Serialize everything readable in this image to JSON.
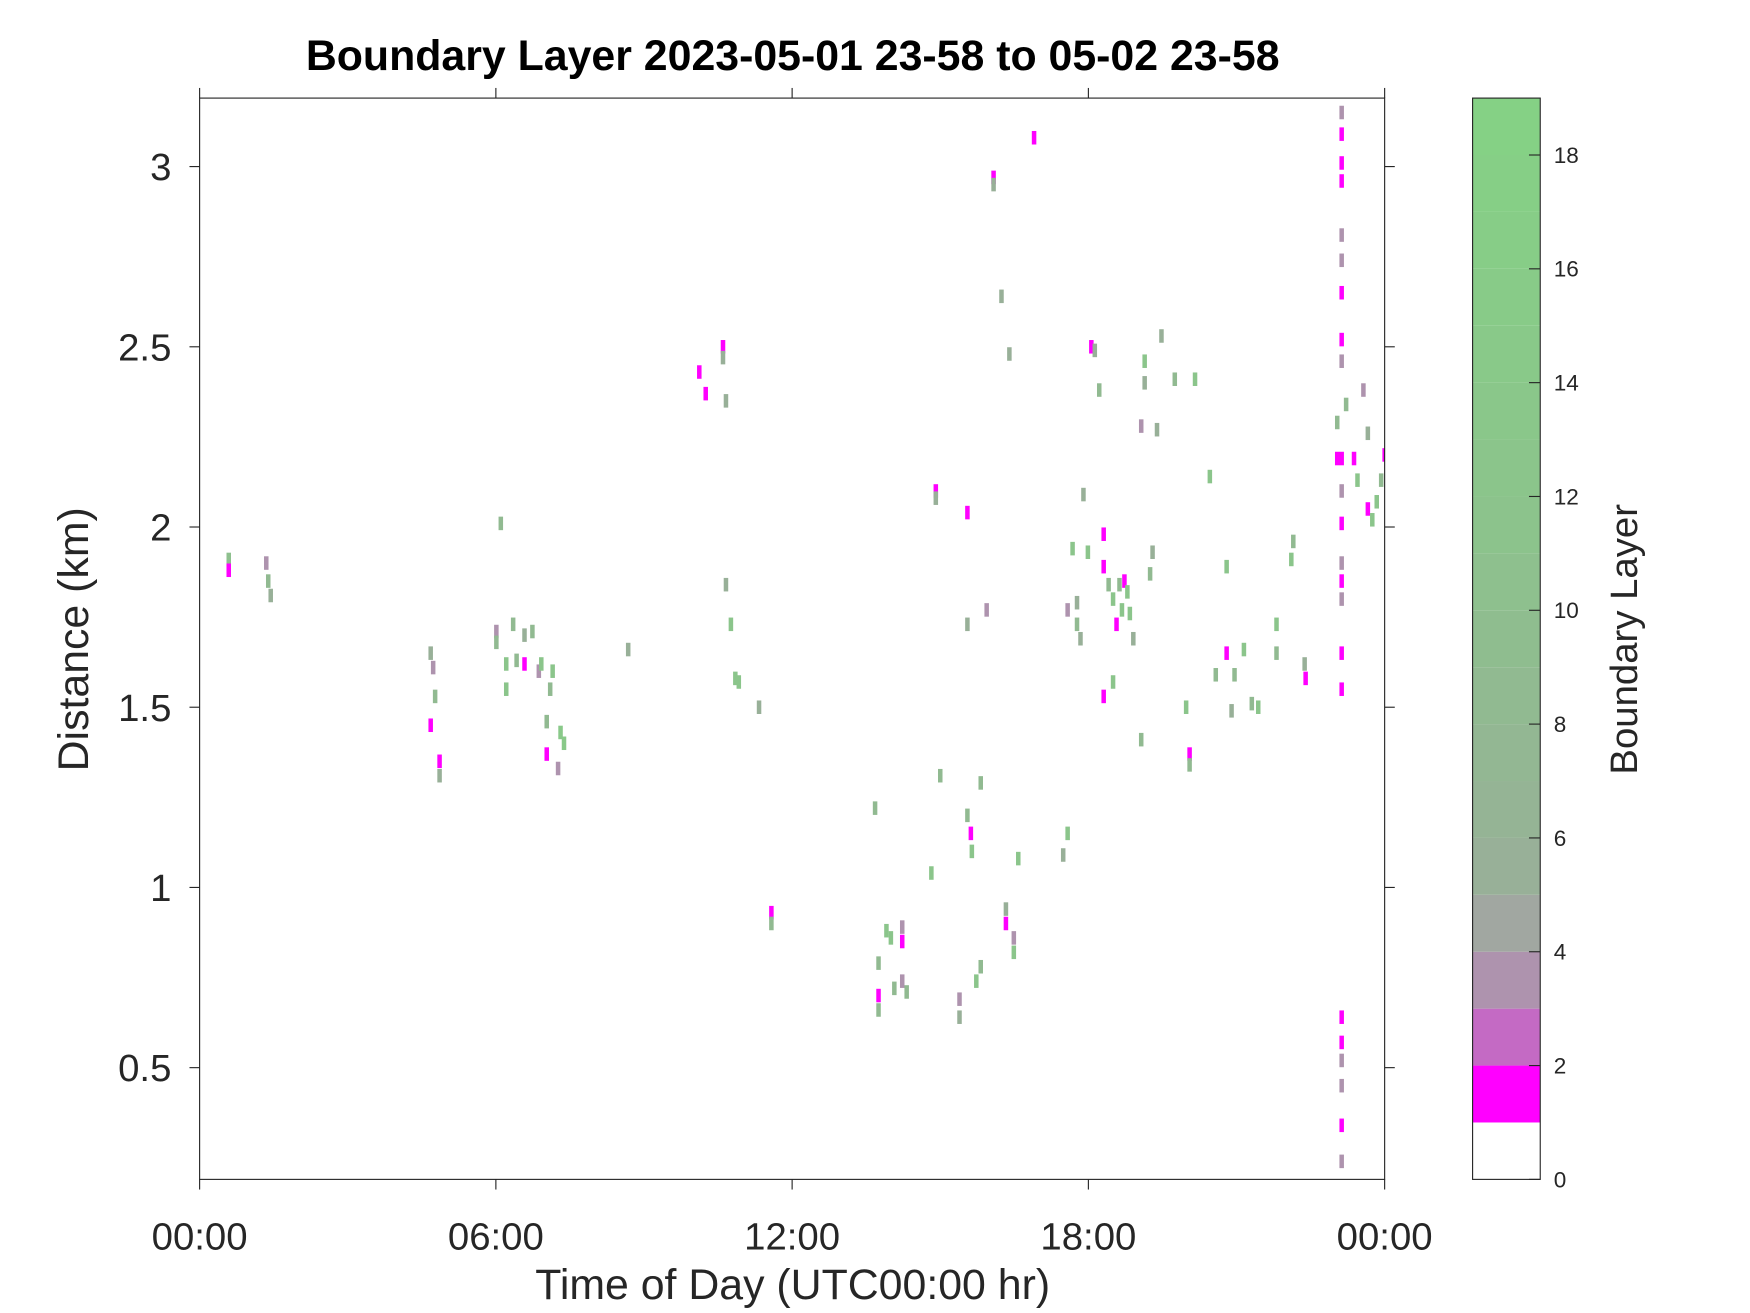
{
  "chart_data": {
    "type": "heatmap",
    "title": "Boundary Layer 2023-05-01 23-58 to 05-02 23-58",
    "xlabel": "Time of Day (UTC00:00 hr)",
    "ylabel": "Distance (km)",
    "colorbar_label": "Boundary Layer",
    "xlim": [
      0,
      24
    ],
    "xticks": [
      {
        "value": 0,
        "label": "00:00"
      },
      {
        "value": 6,
        "label": "06:00"
      },
      {
        "value": 12,
        "label": "12:00"
      },
      {
        "value": 18,
        "label": "18:00"
      },
      {
        "value": 24,
        "label": "00:00"
      }
    ],
    "ylim": [
      0.19,
      3.19
    ],
    "yticks": [
      0.5,
      1,
      1.5,
      2,
      2.5,
      3
    ],
    "clim": [
      0,
      19
    ],
    "cticks": [
      0,
      2,
      4,
      6,
      8,
      10,
      12,
      14,
      16,
      18
    ],
    "colormap": [
      "#ffffff",
      "#ff00ff",
      "#c46ac4",
      "#ae93ae",
      "#a1a7a1",
      "#98b098",
      "#95b495",
      "#93b793",
      "#91ba91",
      "#8fbd8f",
      "#8ec08e",
      "#8cc38c",
      "#8bc58b",
      "#8ac78a",
      "#89c989",
      "#88cb88",
      "#87cd87",
      "#86cf86",
      "#85d185"
    ],
    "x": [
      0.59,
      0.59,
      1.35,
      1.39,
      1.44,
      4.68,
      4.73,
      4.77,
      4.68,
      4.86,
      4.86,
      6.1,
      6.01,
      6.01,
      6.21,
      6.21,
      6.35,
      6.42,
      6.58,
      6.58,
      6.74,
      6.87,
      6.92,
      7.03,
      7.15,
      7.1,
      7.03,
      7.26,
      7.38,
      7.31,
      8.68,
      10.12,
      10.25,
      10.6,
      10.6,
      10.66,
      10.66,
      10.76,
      10.85,
      10.92,
      11.33,
      11.58,
      11.58,
      13.68,
      13.75,
      13.75,
      13.75,
      13.91,
      14.0,
      14.23,
      14.23,
      14.07,
      14.23,
      14.32,
      14.82,
      14.91,
      14.91,
      15.0,
      15.39,
      15.39,
      15.55,
      15.55,
      15.55,
      15.62,
      15.64,
      15.73,
      15.82,
      15.82,
      15.94,
      16.08,
      16.08,
      16.24,
      16.33,
      16.33,
      16.4,
      16.49,
      16.49,
      16.58,
      16.9,
      17.49,
      17.58,
      17.58,
      17.77,
      17.77,
      17.84,
      17.9,
      17.68,
      17.99,
      18.06,
      18.13,
      18.22,
      18.31,
      18.31,
      18.31,
      18.41,
      18.5,
      18.5,
      18.57,
      18.63,
      18.68,
      18.73,
      18.79,
      18.84,
      18.91,
      19.07,
      19.14,
      19.14,
      19.07,
      19.25,
      19.3,
      19.39,
      19.48,
      19.75,
      19.98,
      20.05,
      20.05,
      20.16,
      20.46,
      20.58,
      20.8,
      20.8,
      20.9,
      20.96,
      21.15,
      21.31,
      21.44,
      21.81,
      21.81,
      22.11,
      22.15,
      22.38,
      22.4,
      23.04,
      23.04,
      23.13,
      23.13,
      23.13,
      23.13,
      23.13,
      23.13,
      23.13,
      23.13,
      23.13,
      23.13,
      23.13,
      23.13,
      23.13,
      23.13,
      23.13,
      23.13,
      23.13,
      23.13,
      23.13,
      23.13,
      23.13,
      23.13,
      23.13,
      23.22,
      23.38,
      23.45,
      23.57,
      23.66,
      23.66,
      23.75,
      23.84,
      23.93,
      24.0
    ],
    "y": [
      1.91,
      1.88,
      1.9,
      1.85,
      1.81,
      1.65,
      1.61,
      1.53,
      1.45,
      1.35,
      1.31,
      2.01,
      1.71,
      1.68,
      1.62,
      1.55,
      1.73,
      1.63,
      1.7,
      1.62,
      1.71,
      1.6,
      1.62,
      1.46,
      1.6,
      1.55,
      1.37,
      1.33,
      1.4,
      1.43,
      1.66,
      2.43,
      2.37,
      2.5,
      2.47,
      2.35,
      1.84,
      1.73,
      1.58,
      1.57,
      1.5,
      0.93,
      0.9,
      1.22,
      0.79,
      0.7,
      0.66,
      0.88,
      0.86,
      0.89,
      0.85,
      0.72,
      0.74,
      0.71,
      1.04,
      2.1,
      2.08,
      1.31,
      0.69,
      0.64,
      2.04,
      1.73,
      1.2,
      1.15,
      1.1,
      0.74,
      0.78,
      1.29,
      1.77,
      2.97,
      2.95,
      2.64,
      0.94,
      0.9,
      2.48,
      0.86,
      0.82,
      1.08,
      3.08,
      1.09,
      1.15,
      1.77,
      1.79,
      1.73,
      1.69,
      2.09,
      1.94,
      1.93,
      2.5,
      2.49,
      2.38,
      1.98,
      1.89,
      1.53,
      1.84,
      1.8,
      1.57,
      1.73,
      1.84,
      1.77,
      1.85,
      1.82,
      1.76,
      1.69,
      1.41,
      2.46,
      2.4,
      2.28,
      1.87,
      1.93,
      2.27,
      2.53,
      2.41,
      1.5,
      1.37,
      1.34,
      2.41,
      2.14,
      1.59,
      1.65,
      1.89,
      1.49,
      1.59,
      1.66,
      1.51,
      1.5,
      1.73,
      1.65,
      1.91,
      1.96,
      1.62,
      1.58,
      2.19,
      2.29,
      3.15,
      3.09,
      3.01,
      2.96,
      2.81,
      2.74,
      2.65,
      2.52,
      2.46,
      2.19,
      2.1,
      2.01,
      1.9,
      1.85,
      1.8,
      1.65,
      1.55,
      0.64,
      0.57,
      0.52,
      0.45,
      0.34,
      0.24,
      2.34,
      2.19,
      2.13,
      2.38,
      2.26,
      2.05,
      2.02,
      2.07,
      2.13,
      2.2
    ],
    "values": [
      10,
      1.5,
      3.5,
      8,
      5,
      5,
      3,
      8,
      1.5,
      1.5,
      5,
      8,
      3,
      8,
      12,
      12,
      8,
      8,
      5,
      1.5,
      8,
      3,
      12,
      8,
      12,
      8,
      1.5,
      3,
      14,
      14,
      5,
      1.5,
      1.5,
      1.5,
      5,
      5,
      5,
      12,
      12,
      12,
      5,
      1.5,
      8,
      8,
      8,
      1.5,
      8,
      12,
      12,
      3,
      1.5,
      8,
      3,
      8,
      12,
      1.5,
      5,
      8,
      3,
      5,
      1.5,
      5,
      8,
      1.5,
      12,
      12,
      8,
      8,
      3,
      1.5,
      5,
      5,
      5,
      1.5,
      5,
      3,
      12,
      12,
      1.5,
      5,
      12,
      3,
      5,
      8,
      5,
      5,
      12,
      12,
      1.5,
      5,
      8,
      1.5,
      1.5,
      1.5,
      8,
      12,
      12,
      1.5,
      8,
      12,
      1.5,
      12,
      12,
      5,
      8,
      12,
      5,
      3,
      8,
      5,
      5,
      5,
      8,
      12,
      1.5,
      8,
      12,
      12,
      8,
      1.5,
      12,
      5,
      8,
      12,
      8,
      12,
      12,
      8,
      12,
      8,
      5,
      1.5,
      1.5,
      8,
      3,
      1.5,
      1.5,
      1.5,
      3,
      3,
      1.5,
      1.5,
      3,
      1.5,
      3,
      1.5,
      3,
      1.5,
      3,
      1.5,
      1.5,
      1.5,
      1.5,
      3,
      3,
      1.5,
      3,
      8,
      1.5,
      12,
      3,
      5,
      1.5,
      12,
      12,
      8,
      1.5
    ]
  }
}
